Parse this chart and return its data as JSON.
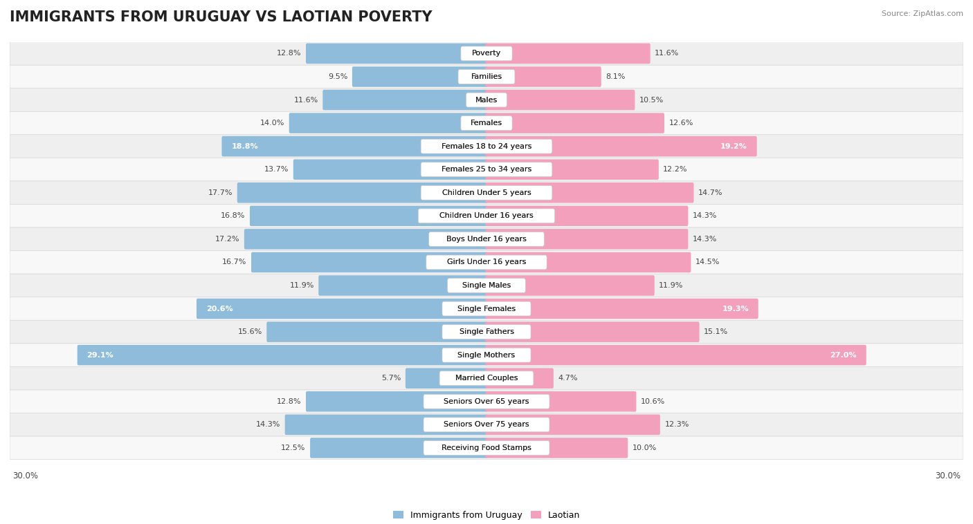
{
  "title": "IMMIGRANTS FROM URUGUAY VS LAOTIAN POVERTY",
  "source": "Source: ZipAtlas.com",
  "categories": [
    "Poverty",
    "Families",
    "Males",
    "Females",
    "Females 18 to 24 years",
    "Females 25 to 34 years",
    "Children Under 5 years",
    "Children Under 16 years",
    "Boys Under 16 years",
    "Girls Under 16 years",
    "Single Males",
    "Single Females",
    "Single Fathers",
    "Single Mothers",
    "Married Couples",
    "Seniors Over 65 years",
    "Seniors Over 75 years",
    "Receiving Food Stamps"
  ],
  "left_values": [
    12.8,
    9.5,
    11.6,
    14.0,
    18.8,
    13.7,
    17.7,
    16.8,
    17.2,
    16.7,
    11.9,
    20.6,
    15.6,
    29.1,
    5.7,
    12.8,
    14.3,
    12.5
  ],
  "right_values": [
    11.6,
    8.1,
    10.5,
    12.6,
    19.2,
    12.2,
    14.7,
    14.3,
    14.3,
    14.5,
    11.9,
    19.3,
    15.1,
    27.0,
    4.7,
    10.6,
    12.3,
    10.0
  ],
  "left_color": "#8fbcdb",
  "right_color": "#f2a0bc",
  "row_bg_even": "#efefef",
  "row_bg_odd": "#f8f8f8",
  "highlight_threshold": 18.0,
  "left_legend": "Immigrants from Uruguay",
  "right_legend": "Laotian",
  "x_max": 30.0,
  "title_fontsize": 15,
  "source_fontsize": 8,
  "value_fontsize": 8,
  "category_fontsize": 8
}
